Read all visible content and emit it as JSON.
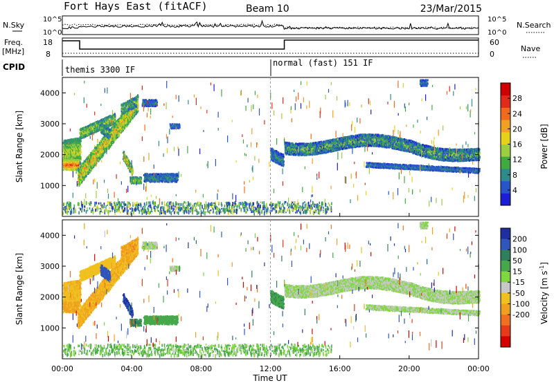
{
  "header": {
    "radar": "Fort Hays East (fitACF)",
    "beam": "Beam 10",
    "date": "23/Mar/2015"
  },
  "top_panels": {
    "nsky_label": "N.Sky",
    "nsearch_label": "N.Search",
    "freq_label_1": "Freq.",
    "freq_label_2": "[MHz]",
    "nave_label": "Nave",
    "cpid_label": "CPID",
    "noise_ticks": [
      "10^5",
      "10^0"
    ],
    "freq_ticks": [
      "18",
      "8"
    ],
    "nave_ticks": [
      "60",
      "0"
    ],
    "cpid_segments": [
      {
        "start_hour": 0,
        "end_hour": 12,
        "label": "themis 3300 IF"
      },
      {
        "start_hour": 12,
        "end_hour": 24,
        "label": "normal (fast) 151 IF"
      }
    ]
  },
  "chart_data": [
    {
      "type": "heatmap",
      "title": "",
      "xlabel": "Time UT",
      "ylabel": "Slant Range [km]",
      "xlim": [
        0,
        24
      ],
      "ylim": [
        0,
        4500
      ],
      "x_ticks": [
        "00:00",
        "04:00",
        "08:00",
        "12:00",
        "16:00",
        "20:00",
        "00:00"
      ],
      "y_ticks": [
        1000,
        2000,
        3000,
        4000
      ],
      "colorbar": {
        "label": "Power [dB]",
        "range": [
          0,
          32
        ],
        "ticks": [
          4,
          8,
          12,
          16,
          20,
          24,
          28
        ],
        "colors": [
          "#1d1dd6",
          "#2a55c9",
          "#2f8a8a",
          "#3faa3f",
          "#9ccf3f",
          "#e6d21a",
          "#f2a023",
          "#ef6a1d",
          "#e22a1a",
          "#cc0000"
        ]
      }
    },
    {
      "type": "heatmap",
      "title": "",
      "xlabel": "Time UT",
      "ylabel": "Slant Range [km]",
      "xlim": [
        0,
        24
      ],
      "ylim": [
        0,
        4500
      ],
      "x_ticks": [
        "00:00",
        "04:00",
        "08:00",
        "12:00",
        "16:00",
        "20:00",
        "00:00"
      ],
      "y_ticks": [
        1000,
        2000,
        3000,
        4000
      ],
      "colorbar": {
        "label": "Velocity [m s^-1]",
        "label_base": "Velocity [m s",
        "label_sup": "-1",
        "label_end": "]",
        "ticks": [
          200,
          100,
          50,
          15,
          -15,
          -50,
          -100,
          -200
        ],
        "colors": [
          "#1f2f9f",
          "#2f56b8",
          "#2f7f5a",
          "#46a84a",
          "#7fd83f",
          "#c8c8c8",
          "#f0c020",
          "#f0a020",
          "#ee7020",
          "#e63a1a",
          "#d40000"
        ]
      }
    }
  ]
}
